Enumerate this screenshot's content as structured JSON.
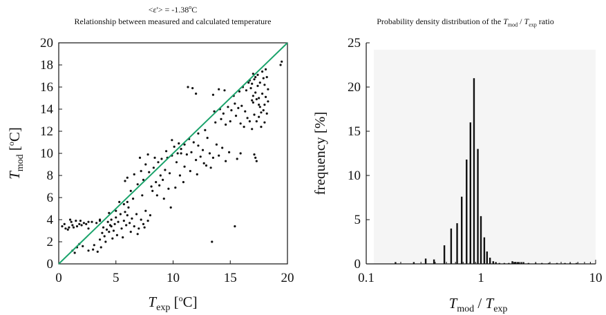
{
  "scatter_subtitle_parts": {
    "pre": "<ε'> = -1.38",
    "sup": "o",
    "post": "C"
  },
  "scatter_title": "Relationship between measured and calculated temperature",
  "hist_title_parts": {
    "pre": "Probability density distribution of the ",
    "t1": "T",
    "s1": "mod",
    "mid": " / ",
    "t2": "T",
    "s2": "exp",
    "post": " ratio"
  },
  "scatter_axes": {
    "x_label": {
      "sym": "T",
      "sub": "exp",
      "unit": " [",
      "deg": "o",
      "unitpost": "C]"
    },
    "y_label": {
      "sym": "T",
      "sub": "mod",
      "unit": " [",
      "deg": "o",
      "unitpost": "C]"
    }
  },
  "hist_axes": {
    "x_label": {
      "t1": "T",
      "s1": "mod",
      "mid": " / ",
      "t2": "T",
      "s2": "exp"
    },
    "y_label": "frequency [%]"
  },
  "colors": {
    "fit_line": "#1aa36b",
    "points": "#111111",
    "bars": "#111111"
  },
  "chart_data": [
    {
      "type": "scatter",
      "title": "Relationship between measured and calculated temperature",
      "subtitle": "<ε'> = -1.38oC",
      "xlabel": "Texp [oC]",
      "ylabel": "Tmod [oC]",
      "xlim": [
        0,
        20
      ],
      "ylim": [
        0,
        20
      ],
      "x_ticks": [
        0,
        5,
        10,
        15,
        20
      ],
      "y_ticks": [
        0,
        2,
        4,
        6,
        8,
        10,
        12,
        14,
        16,
        18,
        20
      ],
      "reference_line": {
        "x": [
          0,
          20
        ],
        "y": [
          0,
          20
        ]
      },
      "points": [
        [
          0.3,
          3.4
        ],
        [
          0.6,
          3.2
        ],
        [
          0.9,
          3.3
        ],
        [
          1.2,
          3.5
        ],
        [
          1.5,
          3.9
        ],
        [
          1.8,
          3.6
        ],
        [
          2.2,
          3.7
        ],
        [
          2.6,
          3.8
        ],
        [
          0.8,
          3.1
        ],
        [
          1.0,
          4.0
        ],
        [
          1.3,
          3.3
        ],
        [
          1.6,
          3.4
        ],
        [
          2.0,
          3.5
        ],
        [
          2.4,
          3.6
        ],
        [
          2.9,
          3.8
        ],
        [
          3.3,
          3.7
        ],
        [
          3.6,
          3.9
        ],
        [
          0.5,
          3.6
        ],
        [
          1.1,
          3.8
        ],
        [
          1.9,
          3.9
        ],
        [
          1.2,
          1.2
        ],
        [
          1.4,
          1.0
        ],
        [
          1.6,
          1.5
        ],
        [
          1.8,
          1.8
        ],
        [
          2.1,
          1.6
        ],
        [
          2.6,
          1.2
        ],
        [
          3.0,
          1.3
        ],
        [
          3.4,
          1.1
        ],
        [
          3.7,
          1.5
        ],
        [
          3.1,
          1.7
        ],
        [
          3.6,
          2.2
        ],
        [
          3.8,
          2.8
        ],
        [
          4.0,
          2.5
        ],
        [
          4.2,
          3.1
        ],
        [
          4.4,
          2.9
        ],
        [
          4.6,
          3.4
        ],
        [
          4.8,
          3.0
        ],
        [
          4.3,
          3.8
        ],
        [
          4.6,
          4.0
        ],
        [
          4.9,
          3.6
        ],
        [
          5.0,
          4.2
        ],
        [
          5.2,
          3.8
        ],
        [
          5.4,
          4.5
        ],
        [
          5.1,
          2.6
        ],
        [
          5.5,
          3.2
        ],
        [
          5.7,
          3.9
        ],
        [
          5.9,
          3.5
        ],
        [
          5.3,
          5.6
        ],
        [
          5.7,
          5.4
        ],
        [
          6.0,
          4.4
        ],
        [
          6.2,
          3.7
        ],
        [
          6.4,
          4.1
        ],
        [
          6.6,
          3.4
        ],
        [
          6.8,
          4.5
        ],
        [
          7.0,
          3.2
        ],
        [
          7.2,
          4.0
        ],
        [
          7.4,
          3.6
        ],
        [
          7.6,
          4.8
        ],
        [
          7.8,
          3.9
        ],
        [
          8.0,
          4.4
        ],
        [
          6.3,
          2.9
        ],
        [
          6.9,
          2.7
        ],
        [
          7.5,
          3.3
        ],
        [
          4.1,
          2.0
        ],
        [
          4.7,
          2.3
        ],
        [
          5.6,
          2.4
        ],
        [
          3.9,
          3.3
        ],
        [
          4.5,
          3.5
        ],
        [
          5.8,
          4.7
        ],
        [
          6.1,
          5.1
        ],
        [
          5.8,
          7.5
        ],
        [
          6.0,
          7.8
        ],
        [
          6.3,
          6.6
        ],
        [
          6.6,
          8.1
        ],
        [
          6.9,
          7.2
        ],
        [
          7.2,
          8.4
        ],
        [
          7.4,
          7.6
        ],
        [
          7.6,
          9.0
        ],
        [
          7.9,
          8.3
        ],
        [
          8.1,
          7.0
        ],
        [
          8.3,
          8.7
        ],
        [
          8.5,
          7.4
        ],
        [
          8.7,
          9.2
        ],
        [
          8.9,
          8.0
        ],
        [
          9.1,
          7.6
        ],
        [
          9.3,
          8.5
        ],
        [
          9.5,
          9.6
        ],
        [
          9.7,
          8.2
        ],
        [
          9.9,
          11.2
        ],
        [
          10.1,
          10.6
        ],
        [
          10.3,
          9.2
        ],
        [
          10.5,
          10.9
        ],
        [
          10.7,
          10.4
        ],
        [
          11.0,
          10.8
        ],
        [
          11.2,
          9.9
        ],
        [
          11.4,
          11.3
        ],
        [
          11.6,
          10.1
        ],
        [
          11.8,
          11.0
        ],
        [
          12.0,
          9.4
        ],
        [
          12.2,
          10.7
        ],
        [
          12.4,
          9.7
        ],
        [
          12.6,
          10.3
        ],
        [
          12.9,
          8.9
        ],
        [
          13.2,
          10.0
        ],
        [
          13.5,
          9.6
        ],
        [
          13.8,
          10.8
        ],
        [
          14.0,
          9.8
        ],
        [
          14.3,
          10.5
        ],
        [
          14.6,
          9.3
        ],
        [
          14.9,
          10.1
        ],
        [
          7.1,
          9.6
        ],
        [
          7.8,
          9.9
        ],
        [
          8.4,
          9.6
        ],
        [
          9.0,
          9.5
        ],
        [
          8.2,
          6.6
        ],
        [
          8.6,
          6.2
        ],
        [
          9.2,
          5.9
        ],
        [
          9.8,
          5.1
        ],
        [
          10.2,
          6.9
        ],
        [
          10.6,
          8.0
        ],
        [
          11.0,
          8.8
        ],
        [
          11.5,
          8.4
        ],
        [
          12.1,
          8.1
        ],
        [
          12.7,
          9.1
        ],
        [
          13.3,
          8.7
        ],
        [
          8.8,
          7.1
        ],
        [
          9.6,
          6.8
        ],
        [
          10.9,
          7.4
        ],
        [
          9.4,
          10.2
        ],
        [
          10.4,
          10.0
        ],
        [
          11.3,
          16.0
        ],
        [
          11.7,
          15.9
        ],
        [
          12.0,
          15.4
        ],
        [
          13.5,
          15.3
        ],
        [
          14.0,
          15.8
        ],
        [
          14.5,
          15.7
        ],
        [
          13.6,
          13.8
        ],
        [
          14.1,
          14.0
        ],
        [
          14.4,
          13.6
        ],
        [
          14.8,
          14.2
        ],
        [
          15.1,
          13.9
        ],
        [
          15.4,
          14.5
        ],
        [
          15.7,
          14.1
        ],
        [
          16.0,
          14.3
        ],
        [
          16.3,
          13.8
        ],
        [
          13.7,
          12.8
        ],
        [
          14.2,
          13.1
        ],
        [
          14.6,
          12.6
        ],
        [
          15.0,
          12.9
        ],
        [
          15.5,
          13.4
        ],
        [
          15.9,
          12.7
        ],
        [
          16.2,
          12.4
        ],
        [
          16.5,
          13.2
        ],
        [
          16.7,
          12.9
        ],
        [
          16.9,
          12.2
        ],
        [
          15.3,
          15.2
        ],
        [
          15.8,
          15.6
        ],
        [
          16.1,
          16.0
        ],
        [
          16.4,
          15.7
        ],
        [
          16.6,
          16.4
        ],
        [
          16.8,
          15.9
        ],
        [
          16.9,
          16.3
        ],
        [
          17.0,
          15.2
        ],
        [
          17.0,
          14.6
        ],
        [
          17.1,
          16.7
        ],
        [
          17.2,
          15.5
        ],
        [
          17.3,
          14.9
        ],
        [
          17.4,
          16.1
        ],
        [
          17.5,
          15.0
        ],
        [
          17.6,
          14.2
        ],
        [
          17.7,
          13.7
        ],
        [
          17.8,
          15.4
        ],
        [
          17.9,
          16.8
        ],
        [
          18.0,
          14.4
        ],
        [
          18.1,
          15.1
        ],
        [
          18.2,
          16.9
        ],
        [
          18.3,
          14.7
        ],
        [
          17.1,
          13.5
        ],
        [
          17.3,
          12.9
        ],
        [
          17.5,
          13.3
        ],
        [
          17.7,
          12.4
        ],
        [
          17.9,
          13.9
        ],
        [
          18.0,
          12.8
        ],
        [
          18.2,
          13.6
        ],
        [
          16.9,
          14.8
        ],
        [
          17.2,
          16.9
        ],
        [
          17.4,
          17.1
        ],
        [
          17.6,
          16.4
        ],
        [
          17.8,
          17.4
        ],
        [
          18.0,
          16.2
        ],
        [
          16.7,
          16.6
        ],
        [
          17.0,
          17.2
        ],
        [
          18.3,
          15.8
        ],
        [
          18.1,
          17.6
        ],
        [
          17.5,
          14.4
        ],
        [
          17.2,
          9.6
        ],
        [
          17.3,
          9.3
        ],
        [
          17.1,
          9.9
        ],
        [
          19.4,
          18.0
        ],
        [
          19.5,
          18.3
        ],
        [
          13.4,
          2.0
        ],
        [
          15.4,
          3.4
        ],
        [
          6.0,
          5.6
        ],
        [
          6.5,
          5.9
        ],
        [
          7.3,
          6.2
        ],
        [
          5.0,
          4.8
        ],
        [
          4.4,
          4.6
        ],
        [
          3.6,
          4.0
        ],
        [
          2.6,
          3.2
        ],
        [
          9.9,
          9.8
        ],
        [
          10.7,
          10.0
        ],
        [
          12.2,
          11.8
        ],
        [
          12.8,
          12.1
        ],
        [
          13.0,
          11.4
        ],
        [
          15.9,
          10.0
        ],
        [
          15.6,
          9.5
        ]
      ]
    },
    {
      "type": "bar",
      "title": "Probability density distribution of the Tmod / Texp ratio",
      "xlabel": "Tmod / Texp",
      "ylabel": "frequency [%]",
      "xscale": "log",
      "xlim": [
        0.1,
        10
      ],
      "ylim": [
        0,
        25
      ],
      "x_ticks": [
        0.1,
        1,
        10
      ],
      "y_ticks": [
        0,
        5,
        10,
        15,
        20,
        25
      ],
      "bars": [
        [
          0.18,
          0.2
        ],
        [
          0.26,
          0.2
        ],
        [
          0.33,
          0.6
        ],
        [
          0.39,
          0.5
        ],
        [
          0.48,
          2.1
        ],
        [
          0.55,
          4.0
        ],
        [
          0.62,
          4.6
        ],
        [
          0.68,
          7.6
        ],
        [
          0.75,
          11.8
        ],
        [
          0.81,
          16.0
        ],
        [
          0.87,
          21.0
        ],
        [
          0.94,
          13.0
        ],
        [
          1.0,
          5.4
        ],
        [
          1.07,
          3.0
        ],
        [
          1.13,
          1.4
        ],
        [
          1.2,
          0.7
        ],
        [
          1.28,
          0.3
        ],
        [
          1.35,
          0.2
        ],
        [
          1.45,
          0.1
        ],
        [
          1.6,
          0.1
        ],
        [
          1.75,
          0.1
        ],
        [
          1.88,
          0.3
        ],
        [
          1.95,
          0.2
        ],
        [
          2.0,
          0.2
        ],
        [
          2.08,
          0.2
        ],
        [
          2.15,
          0.2
        ],
        [
          2.25,
          0.2
        ],
        [
          2.35,
          0.2
        ],
        [
          2.6,
          0.1
        ],
        [
          3.0,
          0.1
        ],
        [
          3.4,
          0.1
        ],
        [
          3.9,
          0.1
        ],
        [
          4.6,
          0.1
        ],
        [
          5.4,
          0.1
        ],
        [
          6.0,
          0.1
        ],
        [
          6.8,
          0.1
        ]
      ]
    }
  ]
}
